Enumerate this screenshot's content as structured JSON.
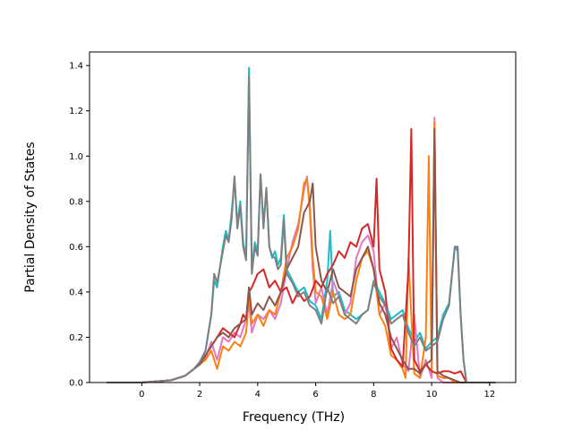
{
  "chart_data": {
    "type": "line",
    "title": "",
    "xlabel": "Frequency (THz)",
    "ylabel": "Partial Density of States",
    "xlim": [
      -1.8,
      12.9
    ],
    "ylim": [
      0.0,
      1.46
    ],
    "xticks": [
      0,
      2,
      4,
      6,
      8,
      10,
      12
    ],
    "yticks": [
      0.0,
      0.2,
      0.4,
      0.6,
      0.8,
      1.0,
      1.2,
      1.4
    ],
    "xtick_labels": [
      "0",
      "2",
      "4",
      "6",
      "8",
      "10",
      "12"
    ],
    "ytick_labels": [
      "0.0",
      "0.2",
      "0.4",
      "0.6",
      "0.8",
      "1.0",
      "1.2",
      "1.4"
    ],
    "grid": false,
    "legend": "none",
    "series": [
      {
        "color": "#17becf",
        "x": [
          -1.2,
          0.0,
          1.0,
          1.5,
          1.8,
          2.0,
          2.2,
          2.4,
          2.5,
          2.6,
          2.8,
          2.9,
          3.0,
          3.1,
          3.2,
          3.3,
          3.4,
          3.5,
          3.6,
          3.7,
          3.8,
          3.9,
          4.0,
          4.1,
          4.2,
          4.3,
          4.4,
          4.5,
          4.6,
          4.7,
          4.8,
          4.9,
          5.0,
          5.2,
          5.4,
          5.6,
          5.8,
          6.0,
          6.2,
          6.4,
          6.5,
          6.6,
          6.8,
          7.0,
          7.2,
          7.4,
          7.6,
          7.8,
          8.0,
          8.2,
          8.4,
          8.6,
          8.8,
          9.0,
          9.2,
          9.4,
          9.6,
          9.8,
          10.0,
          10.2,
          10.4,
          10.6,
          10.8,
          10.9,
          11.0,
          11.1,
          11.2,
          12.2
        ],
        "y": [
          0.0,
          0.0,
          0.01,
          0.03,
          0.06,
          0.09,
          0.14,
          0.3,
          0.45,
          0.42,
          0.6,
          0.67,
          0.63,
          0.75,
          0.9,
          0.7,
          0.8,
          0.62,
          0.55,
          1.39,
          0.5,
          0.62,
          0.58,
          0.92,
          0.7,
          0.85,
          0.6,
          0.55,
          0.58,
          0.52,
          0.55,
          0.74,
          0.5,
          0.45,
          0.4,
          0.42,
          0.36,
          0.34,
          0.28,
          0.45,
          0.67,
          0.38,
          0.4,
          0.32,
          0.3,
          0.28,
          0.3,
          0.32,
          0.45,
          0.4,
          0.35,
          0.28,
          0.3,
          0.32,
          0.24,
          0.18,
          0.22,
          0.15,
          0.18,
          0.2,
          0.3,
          0.35,
          0.6,
          0.58,
          0.3,
          0.1,
          0.0,
          0.0
        ]
      },
      {
        "color": "#e377c2",
        "x": [
          -1.2,
          0.0,
          1.0,
          1.5,
          1.8,
          2.0,
          2.2,
          2.4,
          2.6,
          2.8,
          3.0,
          3.2,
          3.4,
          3.6,
          3.7,
          3.8,
          4.0,
          4.2,
          4.4,
          4.6,
          4.8,
          5.0,
          5.2,
          5.4,
          5.6,
          5.7,
          5.8,
          5.9,
          6.0,
          6.2,
          6.4,
          6.6,
          6.8,
          7.0,
          7.2,
          7.4,
          7.6,
          7.8,
          8.0,
          8.2,
          8.4,
          8.6,
          8.8,
          9.0,
          9.2,
          9.4,
          9.6,
          9.8,
          10.0,
          10.1,
          10.2,
          10.4,
          10.6,
          10.8,
          11.0,
          11.2,
          12.2
        ],
        "y": [
          0.0,
          0.0,
          0.01,
          0.03,
          0.06,
          0.08,
          0.11,
          0.18,
          0.1,
          0.2,
          0.18,
          0.22,
          0.2,
          0.28,
          0.35,
          0.22,
          0.3,
          0.28,
          0.32,
          0.28,
          0.35,
          0.5,
          0.62,
          0.7,
          0.85,
          0.91,
          0.75,
          0.5,
          0.35,
          0.42,
          0.3,
          0.45,
          0.38,
          0.3,
          0.35,
          0.55,
          0.62,
          0.65,
          0.58,
          0.3,
          0.35,
          0.15,
          0.2,
          0.08,
          0.05,
          0.3,
          0.02,
          0.1,
          0.02,
          1.17,
          0.02,
          0.0,
          0.0,
          0.0,
          0.0,
          0.0,
          0.0
        ]
      },
      {
        "color": "#ff7f0e",
        "x": [
          -1.2,
          0.0,
          1.0,
          1.5,
          1.8,
          2.0,
          2.2,
          2.4,
          2.6,
          2.8,
          3.0,
          3.2,
          3.4,
          3.6,
          3.7,
          3.8,
          4.0,
          4.2,
          4.4,
          4.6,
          4.8,
          5.0,
          5.2,
          5.4,
          5.6,
          5.7,
          5.8,
          5.9,
          6.0,
          6.2,
          6.4,
          6.6,
          6.8,
          7.0,
          7.2,
          7.4,
          7.6,
          7.8,
          8.0,
          8.2,
          8.4,
          8.6,
          8.8,
          9.0,
          9.1,
          9.2,
          9.4,
          9.6,
          9.8,
          9.9,
          10.0,
          10.1,
          10.2,
          10.4,
          10.6,
          10.8,
          11.0,
          11.2,
          12.2
        ],
        "y": [
          0.0,
          0.0,
          0.01,
          0.03,
          0.06,
          0.08,
          0.1,
          0.14,
          0.06,
          0.16,
          0.14,
          0.18,
          0.16,
          0.22,
          0.38,
          0.26,
          0.3,
          0.25,
          0.32,
          0.3,
          0.4,
          0.55,
          0.6,
          0.68,
          0.88,
          0.9,
          0.78,
          0.55,
          0.4,
          0.38,
          0.28,
          0.4,
          0.3,
          0.28,
          0.3,
          0.45,
          0.55,
          0.58,
          0.5,
          0.3,
          0.25,
          0.12,
          0.1,
          0.06,
          0.02,
          0.55,
          0.04,
          0.02,
          0.2,
          1.0,
          0.05,
          1.15,
          0.03,
          0.02,
          0.02,
          0.0,
          0.0,
          0.0,
          0.0
        ]
      },
      {
        "color": "#d62728",
        "x": [
          -1.2,
          0.0,
          1.0,
          1.5,
          1.8,
          2.0,
          2.2,
          2.4,
          2.6,
          2.8,
          3.0,
          3.2,
          3.4,
          3.5,
          3.6,
          3.7,
          3.8,
          4.0,
          4.2,
          4.4,
          4.6,
          4.8,
          5.0,
          5.2,
          5.4,
          5.6,
          5.8,
          6.0,
          6.2,
          6.4,
          6.6,
          6.8,
          7.0,
          7.2,
          7.4,
          7.6,
          7.8,
          8.0,
          8.1,
          8.2,
          8.4,
          8.6,
          8.8,
          9.0,
          9.2,
          9.3,
          9.4,
          9.6,
          9.8,
          10.0,
          10.2,
          10.4,
          10.6,
          10.8,
          11.0,
          11.2,
          12.2
        ],
        "y": [
          0.0,
          0.0,
          0.01,
          0.03,
          0.06,
          0.08,
          0.12,
          0.16,
          0.2,
          0.24,
          0.22,
          0.2,
          0.26,
          0.3,
          0.28,
          0.4,
          0.42,
          0.48,
          0.5,
          0.42,
          0.45,
          0.4,
          0.42,
          0.35,
          0.4,
          0.36,
          0.38,
          0.45,
          0.42,
          0.48,
          0.52,
          0.58,
          0.55,
          0.62,
          0.6,
          0.68,
          0.7,
          0.6,
          0.9,
          0.5,
          0.4,
          0.15,
          0.1,
          0.07,
          0.5,
          1.12,
          0.1,
          0.05,
          0.08,
          0.05,
          0.04,
          0.05,
          0.05,
          0.04,
          0.05,
          0.0,
          0.0
        ]
      },
      {
        "color": "#8c564b",
        "x": [
          -1.2,
          0.0,
          1.0,
          1.5,
          1.8,
          2.0,
          2.2,
          2.4,
          2.6,
          2.8,
          3.0,
          3.2,
          3.4,
          3.6,
          3.7,
          3.8,
          4.0,
          4.2,
          4.4,
          4.6,
          4.8,
          5.0,
          5.2,
          5.4,
          5.6,
          5.8,
          5.9,
          6.0,
          6.2,
          6.4,
          6.6,
          6.8,
          7.0,
          7.2,
          7.4,
          7.6,
          7.8,
          8.0,
          8.2,
          8.4,
          8.6,
          8.8,
          9.0,
          9.2,
          9.4,
          9.6,
          9.8,
          10.0,
          10.1,
          10.2,
          10.4,
          10.6,
          10.8,
          11.0,
          11.2,
          12.2
        ],
        "y": [
          0.0,
          0.0,
          0.01,
          0.03,
          0.06,
          0.08,
          0.12,
          0.16,
          0.2,
          0.22,
          0.2,
          0.24,
          0.26,
          0.28,
          0.42,
          0.3,
          0.35,
          0.32,
          0.38,
          0.34,
          0.4,
          0.5,
          0.55,
          0.6,
          0.75,
          0.8,
          0.88,
          0.6,
          0.45,
          0.4,
          0.5,
          0.42,
          0.4,
          0.38,
          0.5,
          0.55,
          0.6,
          0.5,
          0.35,
          0.3,
          0.2,
          0.15,
          0.1,
          0.06,
          0.06,
          0.04,
          0.08,
          0.1,
          1.12,
          0.05,
          0.03,
          0.02,
          0.01,
          0.0,
          0.0,
          0.0
        ]
      },
      {
        "color": "#7f7f7f",
        "x": [
          -1.2,
          0.0,
          1.0,
          1.5,
          1.8,
          2.0,
          2.2,
          2.4,
          2.5,
          2.6,
          2.8,
          2.9,
          3.0,
          3.1,
          3.2,
          3.3,
          3.4,
          3.5,
          3.6,
          3.7,
          3.8,
          3.9,
          4.0,
          4.1,
          4.2,
          4.3,
          4.4,
          4.5,
          4.6,
          4.7,
          4.8,
          4.9,
          5.0,
          5.2,
          5.4,
          5.6,
          5.8,
          6.0,
          6.2,
          6.4,
          6.6,
          6.8,
          7.0,
          7.2,
          7.4,
          7.6,
          7.8,
          8.0,
          8.2,
          8.4,
          8.6,
          8.8,
          9.0,
          9.2,
          9.4,
          9.6,
          9.8,
          10.0,
          10.2,
          10.4,
          10.6,
          10.8,
          10.9,
          11.0,
          11.1,
          11.2,
          12.2
        ],
        "y": [
          0.0,
          0.0,
          0.01,
          0.03,
          0.06,
          0.09,
          0.14,
          0.3,
          0.48,
          0.44,
          0.58,
          0.65,
          0.62,
          0.72,
          0.91,
          0.68,
          0.78,
          0.6,
          0.54,
          1.35,
          0.48,
          0.6,
          0.56,
          0.92,
          0.68,
          0.86,
          0.6,
          0.56,
          0.55,
          0.5,
          0.52,
          0.72,
          0.48,
          0.44,
          0.38,
          0.4,
          0.34,
          0.32,
          0.26,
          0.42,
          0.35,
          0.38,
          0.3,
          0.28,
          0.26,
          0.3,
          0.32,
          0.44,
          0.38,
          0.34,
          0.26,
          0.28,
          0.3,
          0.22,
          0.16,
          0.2,
          0.14,
          0.16,
          0.18,
          0.28,
          0.34,
          0.6,
          0.6,
          0.3,
          0.1,
          0.0,
          0.0
        ]
      }
    ]
  }
}
